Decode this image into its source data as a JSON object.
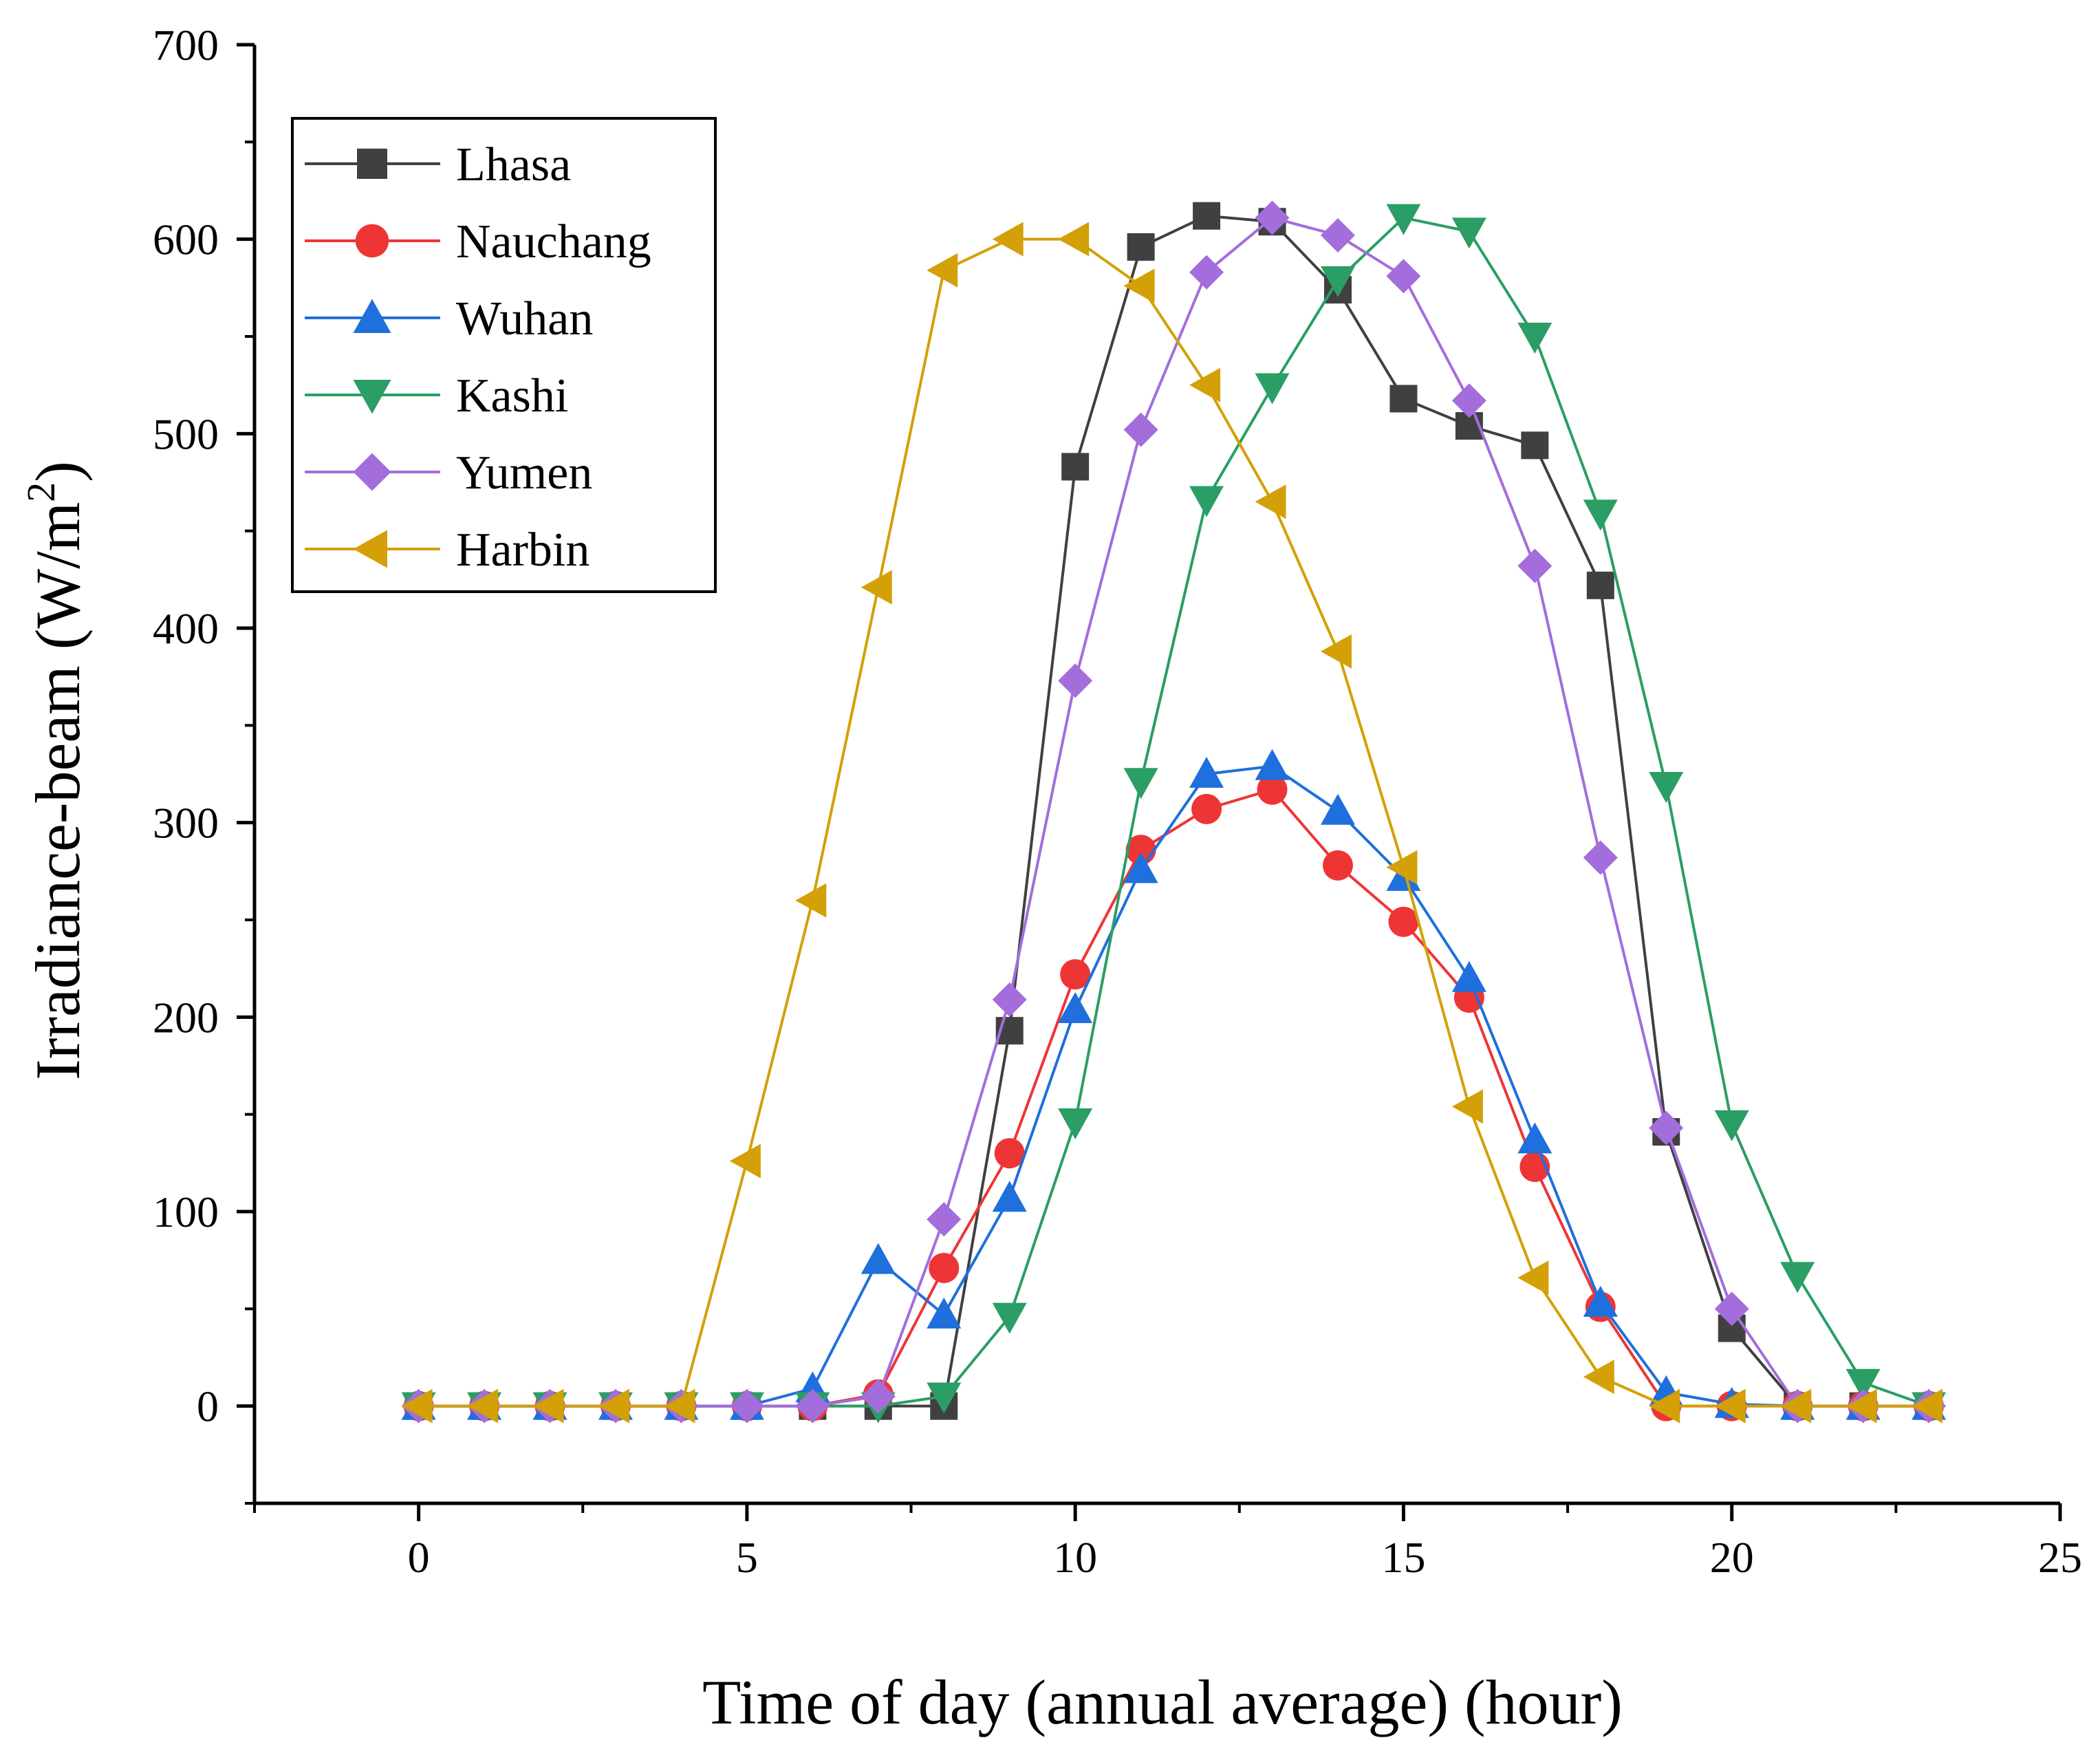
{
  "chart_data": {
    "type": "line",
    "title": "",
    "xlabel": "Time of day  (annual average) (hour)",
    "ylabel": "Irradiance-beam (W/m",
    "ylabel_superscript": "2",
    "ylabel_suffix": ")",
    "xlim": [
      -2.5,
      25
    ],
    "ylim": [
      -50,
      700
    ],
    "xticks": [
      0,
      5,
      10,
      15,
      20,
      25
    ],
    "yticks": [
      0,
      100,
      200,
      300,
      400,
      500,
      600,
      700
    ],
    "grid": false,
    "legend_position": "top-left",
    "x": [
      0,
      1,
      2,
      3,
      4,
      5,
      6,
      7,
      8,
      9,
      10,
      11,
      12,
      13,
      14,
      15,
      16,
      17,
      18,
      19,
      20,
      21,
      22,
      23
    ],
    "series": [
      {
        "name": "Lhasa",
        "color": "#404040",
        "marker": "square",
        "values": [
          0,
          0,
          0,
          0,
          0,
          0,
          0,
          0,
          0,
          193,
          483,
          596,
          612,
          609,
          574,
          518,
          504,
          494,
          422,
          141,
          40,
          0,
          0,
          0
        ]
      },
      {
        "name": "Nauchang",
        "color": "#ee3535",
        "marker": "circle",
        "values": [
          0,
          0,
          0,
          0,
          0,
          0,
          0,
          6,
          71,
          130,
          222,
          286,
          307,
          317,
          278,
          249,
          210,
          123,
          51,
          0,
          0,
          0,
          0,
          0
        ]
      },
      {
        "name": "Wuhan",
        "color": "#1f6fdc",
        "marker": "triangle-up",
        "values": [
          0,
          0,
          0,
          0,
          0,
          0,
          9,
          75,
          47,
          107,
          204,
          276,
          325,
          329,
          306,
          272,
          220,
          137,
          53,
          7,
          1,
          0,
          0,
          0
        ]
      },
      {
        "name": "Kashi",
        "color": "#2a9e64",
        "marker": "triangle-down",
        "values": [
          0,
          0,
          0,
          0,
          0,
          0,
          0,
          0,
          5,
          46,
          146,
          321,
          466,
          524,
          579,
          611,
          604,
          550,
          459,
          319,
          145,
          67,
          12,
          0
        ]
      },
      {
        "name": "Yumen",
        "color": "#a36ddc",
        "marker": "diamond",
        "values": [
          0,
          0,
          0,
          0,
          0,
          0,
          0,
          5,
          96,
          209,
          373,
          502,
          583,
          611,
          602,
          581,
          517,
          432,
          282,
          143,
          50,
          0,
          0,
          0
        ]
      },
      {
        "name": "Harbin",
        "color": "#d3a007",
        "marker": "triangle-left",
        "values": [
          0,
          0,
          0,
          0,
          0,
          126,
          260,
          421,
          584,
          600,
          600,
          576,
          525,
          465,
          388,
          277,
          154,
          66,
          15,
          0,
          0,
          0,
          0,
          0
        ]
      }
    ]
  }
}
